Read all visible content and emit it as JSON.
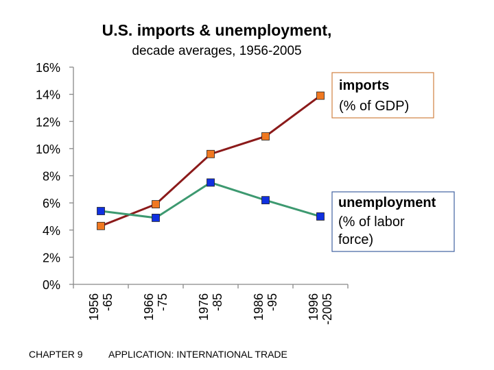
{
  "chart_data": {
    "type": "line",
    "title": "U.S. imports & unemployment,",
    "subtitle": "decade averages, 1956-2005",
    "categories": [
      [
        "1956",
        "-65"
      ],
      [
        "1966",
        "-75"
      ],
      [
        "1976",
        "-85"
      ],
      [
        "1986",
        "-95"
      ],
      [
        "1996",
        "-2005"
      ]
    ],
    "y_ticks": [
      "0%",
      "2%",
      "4%",
      "6%",
      "8%",
      "10%",
      "12%",
      "14%",
      "16%"
    ],
    "ylim": [
      0,
      16
    ],
    "series": [
      {
        "name": "imports",
        "name_detail": "(% of GDP)",
        "values": [
          4.3,
          5.9,
          9.6,
          10.9,
          13.9
        ],
        "line_color": "#8b1a1a",
        "marker_color": "#f07820"
      },
      {
        "name": "unemployment",
        "name_detail": [
          "(% of labor",
          "force)"
        ],
        "values": [
          5.4,
          4.9,
          7.5,
          6.2,
          5.0
        ],
        "line_color": "#3d9970",
        "marker_color": "#1030e0"
      }
    ],
    "legend_imports_border": "#d08040",
    "legend_unemp_border": "#4060a0"
  },
  "footer": {
    "chapter": "CHAPTER 9",
    "section": "APPLICATION:  INTERNATIONAL TRADE"
  }
}
